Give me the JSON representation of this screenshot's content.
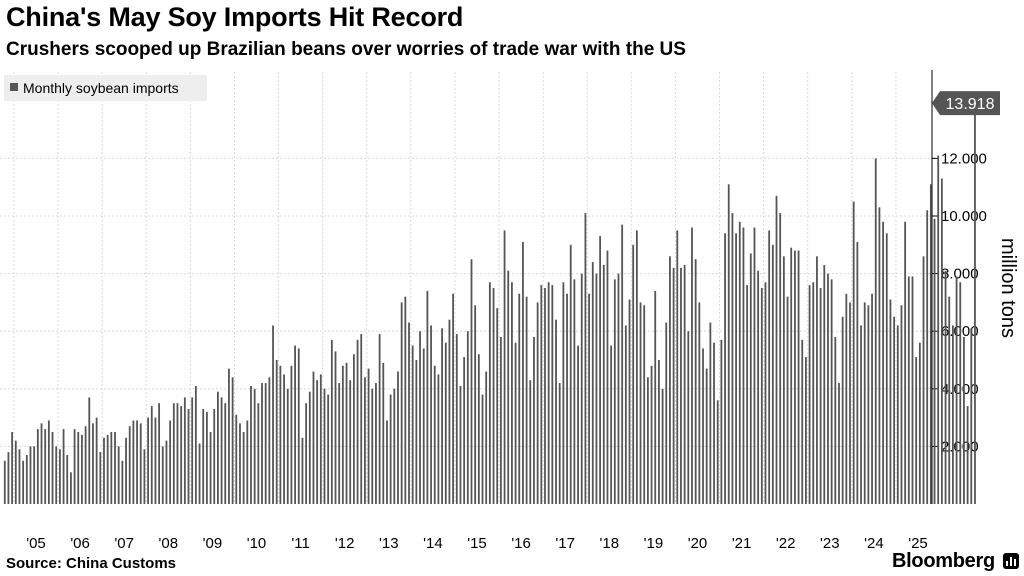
{
  "header": {
    "title": "China's May Soy Imports Hit Record",
    "subtitle": "Crushers scooped up Brazilian beans over worries of trade war with the US"
  },
  "footer": {
    "source": "Source: China Customs",
    "brand": "Bloomberg",
    "brand_icon": "bloomberg-chart-icon"
  },
  "chart_data": {
    "type": "bar",
    "title": "China's May Soy Imports Hit Record",
    "subtitle": "Crushers scooped up Brazilian beans over worries of trade war with the US",
    "ylabel": "million tons",
    "ylim": [
      0,
      15
    ],
    "y_ticks": [
      2,
      4,
      6,
      8,
      10,
      12
    ],
    "y_tick_labels": [
      "2.000",
      "4.000",
      "6.000",
      "8.000",
      "10.000",
      "12.000"
    ],
    "x_tick_labels": [
      "'05",
      "'06",
      "'07",
      "'08",
      "'09",
      "'10",
      "'11",
      "'12",
      "'13",
      "'14",
      "'15",
      "'16",
      "'17",
      "'18",
      "'19",
      "'20",
      "'21",
      "'22",
      "'23",
      "'24",
      "'25"
    ],
    "x_start": "2004-10",
    "x_end": "2025-05",
    "grid": true,
    "legend_position": "top-left",
    "bar_color": "#555555",
    "series": [
      {
        "name": "Monthly soybean imports",
        "values": [
          1.5,
          1.8,
          2.5,
          2.2,
          1.9,
          1.5,
          1.7,
          2.0,
          2.0,
          2.6,
          2.8,
          2.6,
          2.9,
          2.5,
          2.0,
          1.9,
          2.6,
          1.7,
          1.1,
          2.6,
          2.5,
          2.4,
          2.7,
          3.7,
          2.8,
          3.0,
          1.8,
          2.3,
          2.4,
          2.5,
          2.5,
          2.0,
          1.5,
          2.3,
          2.7,
          2.9,
          2.9,
          2.8,
          1.9,
          3.0,
          3.4,
          3.0,
          3.5,
          2.0,
          2.2,
          2.9,
          3.5,
          3.5,
          3.4,
          3.7,
          3.3,
          3.7,
          4.1,
          2.1,
          3.3,
          3.2,
          2.5,
          3.3,
          3.9,
          3.7,
          3.5,
          4.7,
          4.4,
          3.1,
          2.8,
          2.5,
          2.9,
          4.1,
          4.0,
          3.5,
          4.2,
          4.2,
          4.4,
          6.2,
          5.0,
          4.8,
          4.5,
          4.0,
          4.8,
          5.5,
          5.4,
          2.3,
          3.5,
          3.9,
          4.6,
          4.3,
          4.5,
          4.0,
          3.8,
          5.7,
          5.3,
          4.2,
          4.8,
          4.9,
          4.3,
          5.2,
          5.7,
          5.9,
          4.4,
          4.7,
          4.0,
          4.2,
          5.9,
          4.9,
          2.9,
          3.8,
          4.0,
          4.6,
          7.0,
          7.2,
          6.3,
          5.5,
          5.0,
          6.0,
          5.4,
          7.4,
          6.2,
          4.8,
          4.5,
          6.1,
          5.6,
          6.4,
          7.3,
          5.9,
          4.1,
          5.1,
          6.0,
          8.5,
          6.9,
          5.2,
          3.8,
          4.6,
          7.7,
          7.5,
          6.8,
          5.8,
          9.5,
          8.1,
          7.7,
          5.6,
          7.3,
          9.1,
          7.2,
          4.3,
          5.8,
          7.0,
          7.6,
          7.5,
          7.7,
          7.6,
          6.4,
          4.2,
          7.7,
          7.3,
          9.0,
          7.8,
          5.5,
          8.0,
          10.1,
          7.3,
          8.4,
          8.0,
          9.3,
          8.3,
          8.8,
          5.5,
          7.8,
          8.0,
          9.7,
          6.2,
          7.1,
          9.0,
          9.5,
          7.0,
          6.9,
          4.4,
          4.8,
          7.4,
          5.0,
          4.0,
          6.3,
          8.6,
          8.2,
          9.5,
          8.2,
          8.3,
          6.0,
          9.6,
          8.5,
          7.0,
          5.4,
          4.7,
          6.3,
          5.6,
          3.6,
          5.7,
          9.4,
          11.1,
          10.1,
          9.4,
          9.8,
          9.6,
          7.6,
          8.7,
          9.6,
          8.1,
          7.5,
          7.7,
          9.5,
          9.0,
          10.7,
          10.1,
          8.6,
          7.2,
          8.9,
          8.8,
          8.8,
          5.7,
          5.1,
          7.6,
          7.7,
          8.6,
          7.5,
          8.3,
          8.0,
          7.8,
          5.8,
          4.2,
          6.5,
          7.3,
          7.0,
          10.5,
          9.1,
          6.2,
          7.0,
          6.9,
          7.3,
          12.0,
          10.3,
          9.8,
          9.4,
          7.1,
          6.5,
          6.2,
          6.9,
          9.8,
          7.9,
          7.9,
          5.1,
          5.6,
          8.6,
          10.2,
          11.1,
          9.9,
          12.1,
          11.3,
          8.1,
          7.2,
          6.2,
          7.9,
          7.7,
          5.8,
          3.4,
          6.1,
          13.918
        ]
      }
    ],
    "last_value_label": "13.918"
  }
}
